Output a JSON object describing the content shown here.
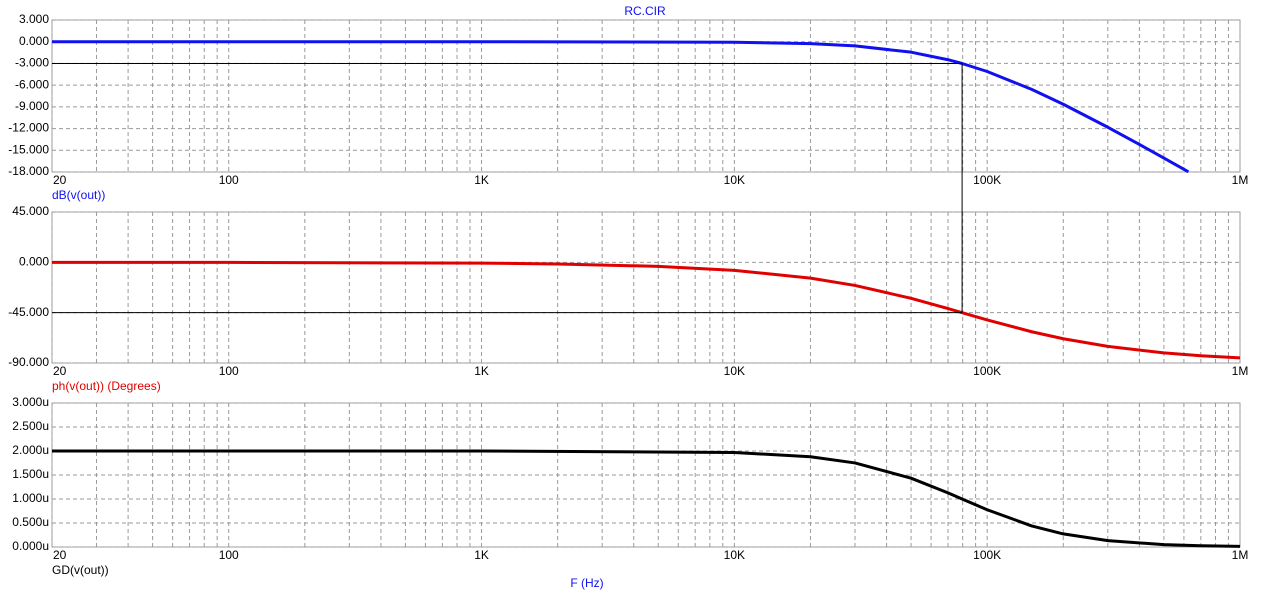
{
  "chart_data": [
    {
      "type": "line",
      "title": "RC.CIR",
      "xscale": "log",
      "grid": true,
      "xlim": [
        20,
        1000000
      ],
      "xticks": [
        20,
        100,
        {
          "value": 1000,
          "label": "1K"
        },
        {
          "value": 10000,
          "label": "10K"
        },
        {
          "value": 100000,
          "label": "100K"
        },
        {
          "value": 1000000,
          "label": "1M"
        }
      ],
      "x_minor_grid": [
        30,
        40,
        50,
        60,
        70,
        80,
        90,
        200,
        300,
        400,
        500,
        600,
        700,
        800,
        900,
        2000,
        3000,
        4000,
        5000,
        6000,
        7000,
        8000,
        9000,
        20000,
        30000,
        40000,
        50000,
        60000,
        70000,
        80000,
        90000,
        200000,
        300000,
        400000,
        500000,
        600000,
        700000,
        800000,
        900000
      ],
      "ylim": [
        -18,
        3
      ],
      "yticks": [
        {
          "value": 3,
          "label": "3.000"
        },
        {
          "value": 0,
          "label": "0.000"
        },
        {
          "value": -3,
          "label": "-3.000"
        },
        {
          "value": -6,
          "label": "-6.000"
        },
        {
          "value": -9,
          "label": "-9.000"
        },
        {
          "value": -12,
          "label": "-12.000"
        },
        {
          "value": -15,
          "label": "-15.000"
        },
        {
          "value": -18,
          "label": "-18.000"
        }
      ],
      "x": [
        20,
        100,
        1000,
        10000,
        20000,
        30000,
        50000,
        70000,
        79577,
        100000,
        150000,
        200000,
        300000,
        400000,
        500000,
        625000
      ],
      "series": [
        {
          "name": "dB(v(out))",
          "color": "#1010f0",
          "values": [
            0,
            0,
            -0.001,
            -0.068,
            -0.266,
            -0.577,
            -1.445,
            -2.489,
            -3.01,
            -4.115,
            -6.583,
            -8.643,
            -11.82,
            -14.19,
            -16.07,
            -17.97
          ]
        }
      ],
      "cursor": {
        "x": 79577,
        "y": -3.01
      }
    },
    {
      "type": "line",
      "xscale": "log",
      "grid": true,
      "xlim": [
        20,
        1000000
      ],
      "xticks": [
        20,
        100,
        {
          "value": 1000,
          "label": "1K"
        },
        {
          "value": 10000,
          "label": "10K"
        },
        {
          "value": 100000,
          "label": "100K"
        },
        {
          "value": 1000000,
          "label": "1M"
        }
      ],
      "x_minor_grid": [
        30,
        40,
        50,
        60,
        70,
        80,
        90,
        200,
        300,
        400,
        500,
        600,
        700,
        800,
        900,
        2000,
        3000,
        4000,
        5000,
        6000,
        7000,
        8000,
        9000,
        20000,
        30000,
        40000,
        50000,
        60000,
        70000,
        80000,
        90000,
        200000,
        300000,
        400000,
        500000,
        600000,
        700000,
        800000,
        900000
      ],
      "ylim": [
        -90,
        45
      ],
      "yticks": [
        {
          "value": 45,
          "label": "45.000"
        },
        {
          "value": 0,
          "label": "0.000"
        },
        {
          "value": -45,
          "label": "-45.000"
        },
        {
          "value": -90,
          "label": "-90.000"
        }
      ],
      "x": [
        20,
        100,
        1000,
        2000,
        5000,
        10000,
        20000,
        30000,
        50000,
        70000,
        79577,
        100000,
        150000,
        200000,
        300000,
        500000,
        700000,
        1000000
      ],
      "series": [
        {
          "name": "ph(v(out)) (Degrees)",
          "color": "#e00000",
          "values": [
            -0.014,
            -0.072,
            -0.72,
            -1.44,
            -3.6,
            -7.16,
            -14.11,
            -20.66,
            -32.14,
            -41.34,
            -45,
            -51.49,
            -62.05,
            -68.3,
            -75.14,
            -80.96,
            -83.52,
            -85.45
          ]
        }
      ],
      "cursor": {
        "x": 79577,
        "y": -45
      }
    },
    {
      "type": "line",
      "xscale": "log",
      "grid": true,
      "xlabel": "F (Hz)",
      "xlim": [
        20,
        1000000
      ],
      "xticks": [
        20,
        100,
        {
          "value": 1000,
          "label": "1K"
        },
        {
          "value": 10000,
          "label": "10K"
        },
        {
          "value": 100000,
          "label": "100K"
        },
        {
          "value": 1000000,
          "label": "1M"
        }
      ],
      "x_minor_grid": [
        30,
        40,
        50,
        60,
        70,
        80,
        90,
        200,
        300,
        400,
        500,
        600,
        700,
        800,
        900,
        2000,
        3000,
        4000,
        5000,
        6000,
        7000,
        8000,
        9000,
        20000,
        30000,
        40000,
        50000,
        60000,
        70000,
        80000,
        90000,
        200000,
        300000,
        400000,
        500000,
        600000,
        700000,
        800000,
        900000
      ],
      "ylim": [
        0,
        3e-06
      ],
      "yticks": [
        {
          "value": 3e-06,
          "label": "3.000u"
        },
        {
          "value": 2.5e-06,
          "label": "2.500u"
        },
        {
          "value": 2e-06,
          "label": "2.000u"
        },
        {
          "value": 1.5e-06,
          "label": "1.500u"
        },
        {
          "value": 1e-06,
          "label": "1.000u"
        },
        {
          "value": 5e-07,
          "label": "0.500u"
        },
        {
          "value": 0,
          "label": "0.000u"
        }
      ],
      "x": [
        20,
        1000,
        10000,
        20000,
        30000,
        50000,
        70000,
        79577,
        100000,
        150000,
        200000,
        300000,
        500000,
        700000,
        1000000
      ],
      "series": [
        {
          "name": "GD(v(out))",
          "color": "#000000",
          "values": [
            2e-06,
            2e-06,
            1.969e-06,
            1.881e-06,
            1.751e-06,
            1.434e-06,
            1.128e-06,
            1e-06,
            7.76e-07,
            4.39e-07,
            2.73e-07,
            1.32e-07,
            4.93e-08,
            2.54e-08,
            1.26e-08
          ]
        }
      ]
    }
  ]
}
